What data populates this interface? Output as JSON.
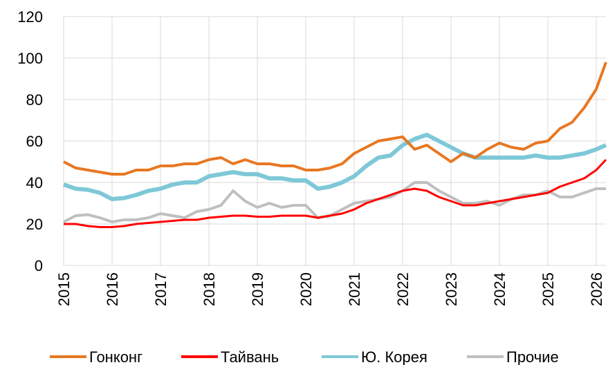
{
  "chart_data": {
    "type": "line",
    "x": [
      2015,
      2015.25,
      2015.5,
      2015.75,
      2016,
      2016.25,
      2016.5,
      2016.75,
      2017,
      2017.25,
      2017.5,
      2017.75,
      2018,
      2018.25,
      2018.5,
      2018.75,
      2019,
      2019.25,
      2019.5,
      2019.75,
      2020,
      2020.25,
      2020.5,
      2020.75,
      2021,
      2021.25,
      2021.5,
      2021.75,
      2022,
      2022.25,
      2022.5,
      2022.75,
      2023,
      2023.25,
      2023.5,
      2023.75,
      2024,
      2024.25,
      2024.5,
      2024.75,
      2025,
      2025.25,
      2025.5,
      2025.75,
      2026,
      2026.2
    ],
    "series": [
      {
        "name": "Гонконг",
        "color": "#e87722",
        "values": [
          50,
          47,
          46,
          45,
          44,
          44,
          46,
          46,
          48,
          48,
          49,
          49,
          51,
          52,
          49,
          51,
          49,
          49,
          48,
          48,
          46,
          46,
          47,
          49,
          54,
          57,
          60,
          61,
          62,
          56,
          58,
          54,
          50,
          54,
          52,
          56,
          59,
          57,
          56,
          59,
          60,
          66,
          69,
          76,
          85,
          98
        ]
      },
      {
        "name": "Тайвань",
        "color": "#ff0000",
        "values": [
          20,
          20,
          19,
          18.5,
          18.5,
          19,
          20,
          20.5,
          21,
          21.5,
          22,
          22,
          23,
          23.5,
          24,
          24,
          23.5,
          23.5,
          24,
          24,
          24,
          23,
          24,
          25,
          27,
          30,
          32,
          34,
          36,
          37,
          36,
          33,
          31,
          29,
          29,
          30,
          31,
          32,
          33,
          34,
          35,
          38,
          40,
          42,
          46,
          51
        ]
      },
      {
        "name": "Ю. Корея",
        "color": "#7ec8d8",
        "values": [
          39,
          37,
          36.5,
          35,
          32,
          32.5,
          34,
          36,
          37,
          39,
          40,
          40,
          43,
          44,
          45,
          44,
          44,
          42,
          42,
          41,
          41,
          37,
          38,
          40,
          43,
          48,
          52,
          53,
          58,
          61,
          63,
          60,
          57,
          54,
          52,
          52,
          52,
          52,
          52,
          53,
          52,
          52,
          53,
          54,
          56,
          58
        ]
      },
      {
        "name": "Прочие",
        "color": "#bfbfbf",
        "values": [
          21,
          24,
          24.5,
          23,
          21,
          22,
          22,
          23,
          25,
          24,
          23,
          26,
          27,
          29,
          36,
          31,
          28,
          30,
          28,
          29,
          29,
          23,
          24,
          27,
          30,
          31,
          32,
          33,
          36,
          40,
          40,
          36,
          33,
          30,
          30,
          31,
          29,
          32,
          34,
          34,
          36,
          33,
          33,
          35,
          37,
          37
        ]
      }
    ],
    "xlim": [
      2015,
      2026.2
    ],
    "xticks": [
      2015,
      2016,
      2017,
      2018,
      2019,
      2020,
      2021,
      2022,
      2023,
      2024,
      2025,
      2026
    ],
    "ylim": [
      0,
      120
    ],
    "yticks": [
      0,
      20,
      40,
      60,
      80,
      100,
      120
    ],
    "grid": true,
    "legend": "bottom"
  }
}
